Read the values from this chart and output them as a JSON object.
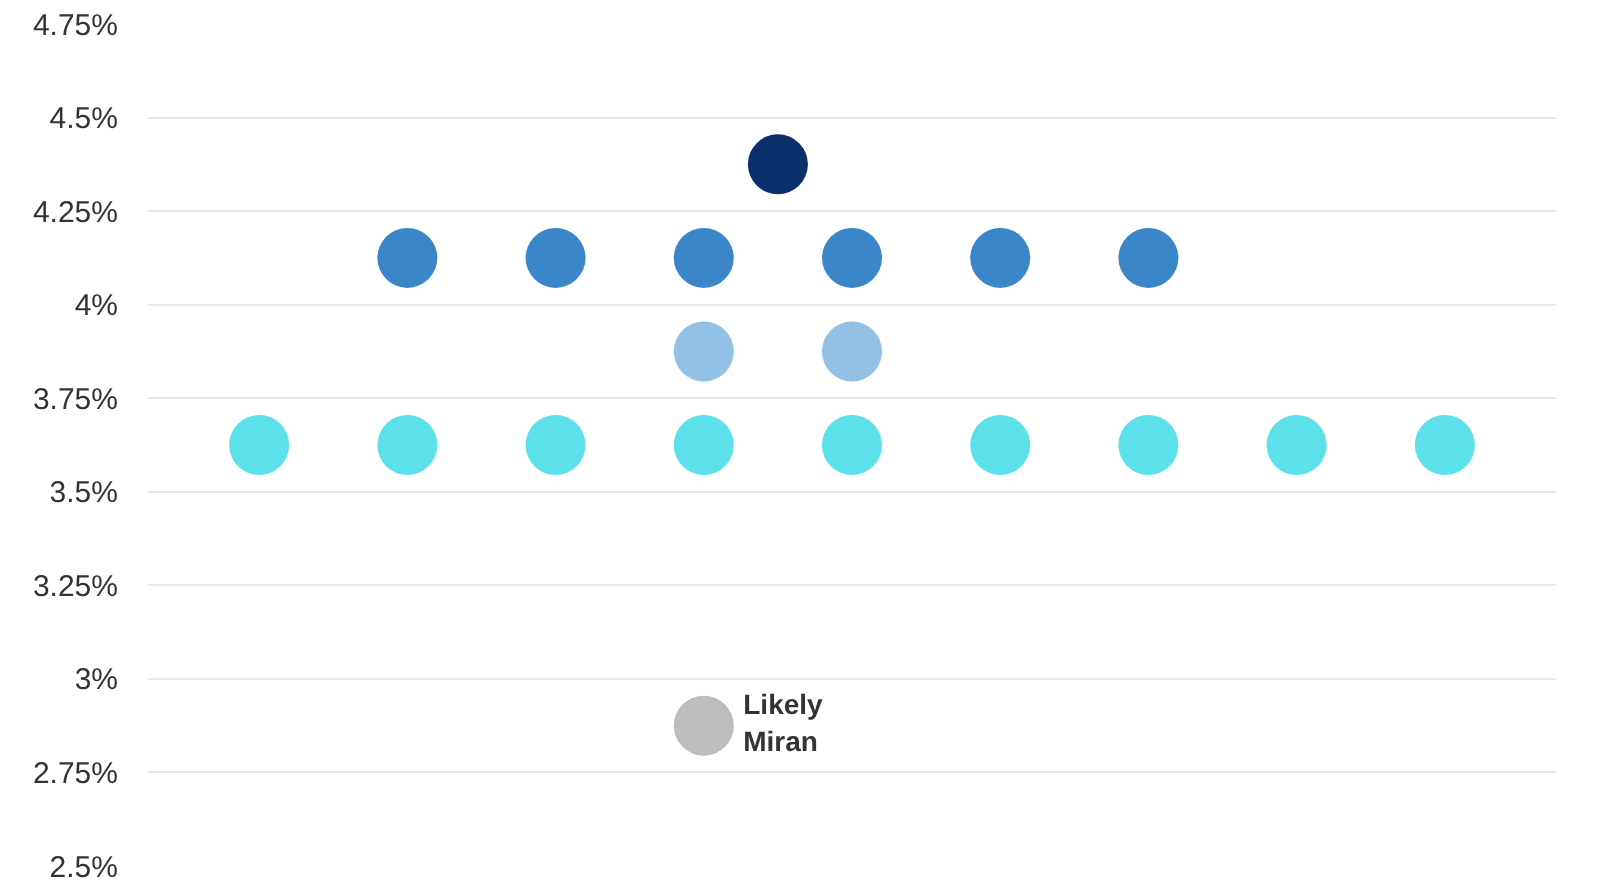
{
  "chart_data": {
    "type": "scatter",
    "marker": "circle",
    "grid": "y",
    "legend": false,
    "tick_labels": "y",
    "categories": [
      null,
      null,
      null,
      null,
      null,
      null,
      null,
      null,
      null,
      null,
      null,
      null,
      null,
      null,
      null,
      null,
      null,
      null,
      null
    ],
    "ylim": [
      2.5,
      4.75
    ],
    "yticks": [
      {
        "value": 2.5,
        "label": "2.5%"
      },
      {
        "value": 2.75,
        "label": "2.75%"
      },
      {
        "value": 3,
        "label": "3%"
      },
      {
        "value": 3.25,
        "label": "3.25%"
      },
      {
        "value": 3.5,
        "label": "3.5%"
      },
      {
        "value": 3.75,
        "label": "3.75%"
      },
      {
        "value": 4,
        "label": "4%"
      },
      {
        "value": 4.25,
        "label": "4.25%"
      },
      {
        "value": 4.5,
        "label": "4.5%"
      },
      {
        "value": 4.75,
        "label": "4.75%"
      }
    ],
    "series": [
      {
        "color": "#0b2f6b",
        "values": [
          null,
          null,
          null,
          null,
          null,
          null,
          null,
          null,
          4.375,
          null,
          null,
          null,
          null,
          null,
          null,
          null,
          null,
          null,
          null
        ]
      },
      {
        "color": "#3a86c8",
        "values": [
          null,
          null,
          null,
          4.125,
          null,
          4.125,
          null,
          4.125,
          null,
          4.125,
          null,
          4.125,
          null,
          4.125,
          null,
          null,
          null,
          null,
          null
        ]
      },
      {
        "color": "#93c1e6",
        "values": [
          null,
          null,
          null,
          null,
          null,
          null,
          null,
          3.875,
          null,
          3.875,
          null,
          null,
          null,
          null,
          null,
          null,
          null,
          null,
          null
        ]
      },
      {
        "color": "#5ce1ea",
        "values": [
          null,
          3.625,
          null,
          3.625,
          null,
          3.625,
          null,
          3.625,
          null,
          3.625,
          null,
          3.625,
          null,
          3.625,
          null,
          3.625,
          null,
          3.625,
          null
        ]
      },
      {
        "name": "Likely Miran",
        "color": "#bdbdbd",
        "values": [
          null,
          null,
          null,
          null,
          null,
          null,
          null,
          2.875,
          null,
          null,
          null,
          null,
          null,
          null,
          null,
          null,
          null,
          null,
          null
        ]
      }
    ]
  }
}
